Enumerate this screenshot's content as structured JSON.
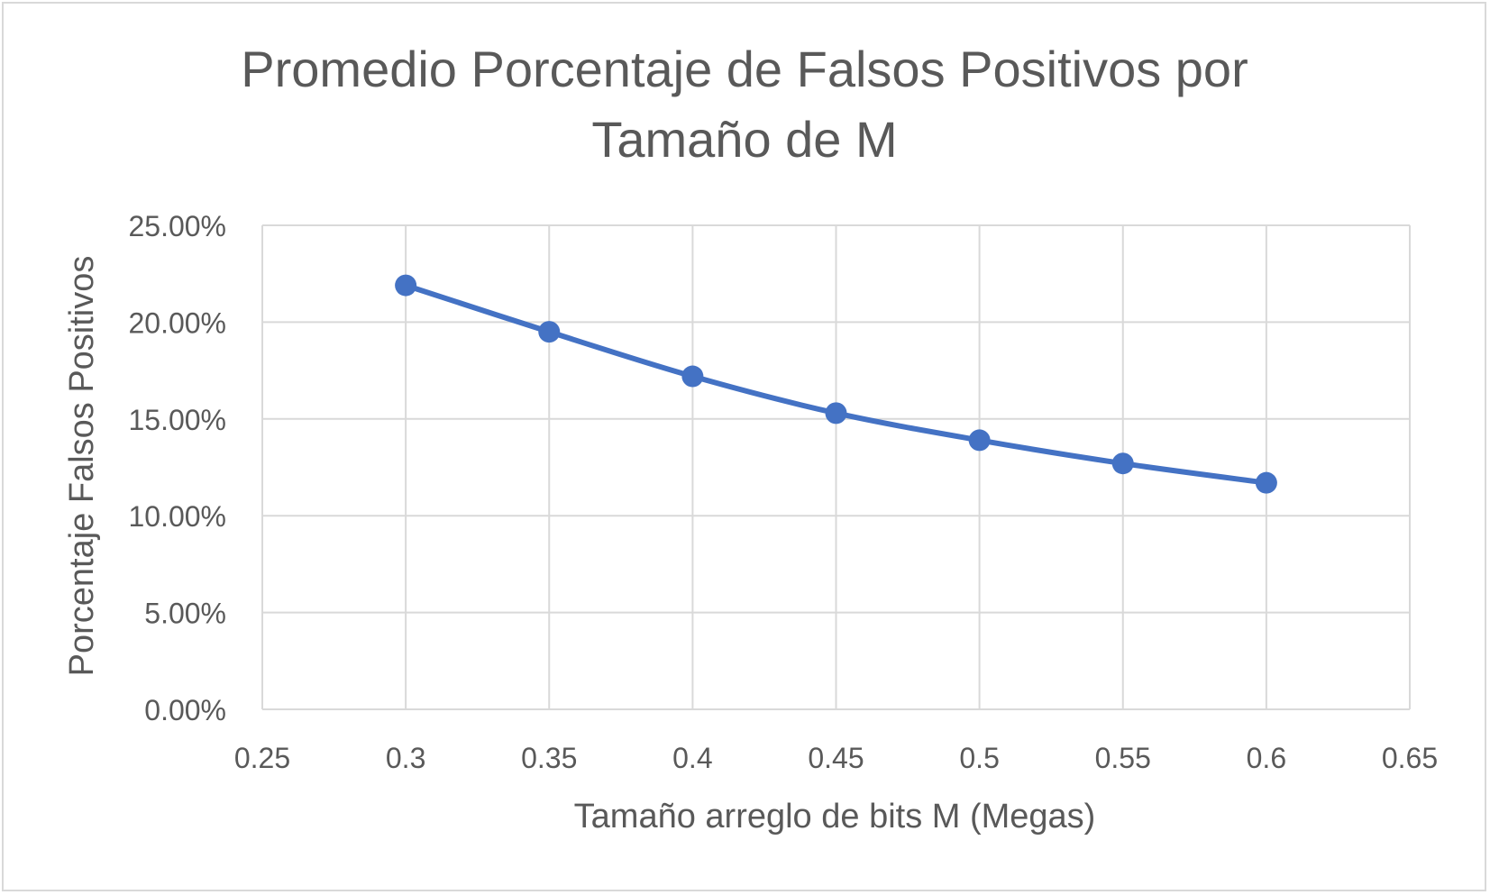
{
  "chart_data": {
    "type": "scatter",
    "title_lines": [
      "Promedio Porcentaje de Falsos Positivos por",
      "Tamaño de M"
    ],
    "xlabel": "Tamaño arreglo de bits M (Megas)",
    "ylabel": "Porcentaje Falsos Positivos",
    "xlim": [
      0.25,
      0.65
    ],
    "ylim": [
      0,
      0.25
    ],
    "x_ticks": [
      0.25,
      0.3,
      0.35,
      0.4,
      0.45,
      0.5,
      0.55,
      0.6,
      0.65
    ],
    "x_tick_labels": [
      "0.25",
      "0.3",
      "0.35",
      "0.4",
      "0.45",
      "0.5",
      "0.55",
      "0.6",
      "0.65"
    ],
    "y_ticks": [
      0,
      0.05,
      0.1,
      0.15,
      0.2,
      0.25
    ],
    "y_tick_labels": [
      "0.00%",
      "5.00%",
      "10.00%",
      "15.00%",
      "20.00%",
      "25.00%"
    ],
    "grid": true,
    "legend": "none",
    "line_style": "smooth",
    "series": [
      {
        "color": "#4472c4",
        "x": [
          0.3,
          0.35,
          0.4,
          0.45,
          0.5,
          0.55,
          0.6
        ],
        "y": [
          0.219,
          0.195,
          0.172,
          0.153,
          0.139,
          0.127,
          0.117
        ]
      }
    ],
    "colors": {
      "text": "#595959",
      "grid": "#d9d9d9",
      "border": "#d9d9d9"
    }
  }
}
